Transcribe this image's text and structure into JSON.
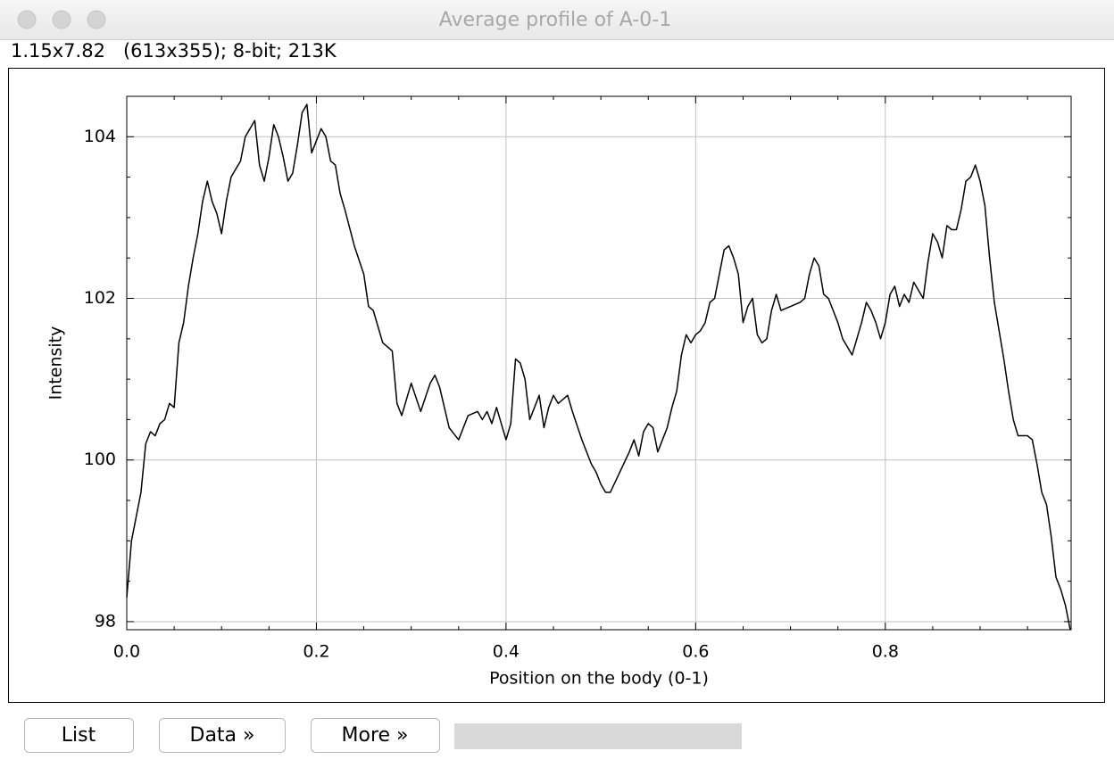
{
  "window": {
    "title": "Average profile of A-0-1",
    "info": "1.15x7.82   (613x355); 8-bit; 213K"
  },
  "chart_data": {
    "type": "line",
    "xlabel": "Position on the body (0-1)",
    "ylabel": "Intensity",
    "x": [
      0,
      0.005,
      0.01,
      0.015,
      0.02,
      0.025,
      0.03,
      0.035,
      0.04,
      0.045,
      0.05,
      0.055,
      0.06,
      0.065,
      0.07,
      0.075,
      0.08,
      0.085,
      0.09,
      0.095,
      0.1,
      0.105,
      0.11,
      0.115,
      0.12,
      0.125,
      0.13,
      0.135,
      0.14,
      0.145,
      0.15,
      0.155,
      0.16,
      0.165,
      0.17,
      0.175,
      0.18,
      0.185,
      0.19,
      0.195,
      0.2,
      0.205,
      0.21,
      0.215,
      0.22,
      0.225,
      0.23,
      0.24,
      0.25,
      0.255,
      0.26,
      0.27,
      0.28,
      0.285,
      0.29,
      0.3,
      0.31,
      0.32,
      0.325,
      0.33,
      0.34,
      0.35,
      0.36,
      0.37,
      0.375,
      0.38,
      0.385,
      0.39,
      0.4,
      0.405,
      0.41,
      0.415,
      0.42,
      0.425,
      0.43,
      0.435,
      0.44,
      0.445,
      0.45,
      0.455,
      0.46,
      0.465,
      0.47,
      0.48,
      0.49,
      0.495,
      0.5,
      0.505,
      0.51,
      0.52,
      0.53,
      0.535,
      0.54,
      0.545,
      0.55,
      0.555,
      0.56,
      0.565,
      0.57,
      0.575,
      0.58,
      0.585,
      0.59,
      0.595,
      0.6,
      0.605,
      0.61,
      0.615,
      0.62,
      0.625,
      0.63,
      0.635,
      0.64,
      0.645,
      0.65,
      0.655,
      0.66,
      0.665,
      0.67,
      0.675,
      0.68,
      0.685,
      0.69,
      0.7,
      0.71,
      0.715,
      0.72,
      0.725,
      0.73,
      0.735,
      0.74,
      0.75,
      0.755,
      0.76,
      0.765,
      0.77,
      0.775,
      0.78,
      0.785,
      0.79,
      0.795,
      0.8,
      0.805,
      0.81,
      0.815,
      0.82,
      0.825,
      0.83,
      0.835,
      0.84,
      0.845,
      0.85,
      0.855,
      0.86,
      0.865,
      0.87,
      0.875,
      0.88,
      0.885,
      0.89,
      0.895,
      0.9,
      0.905,
      0.91,
      0.915,
      0.92,
      0.925,
      0.93,
      0.935,
      0.94,
      0.945,
      0.95,
      0.955,
      0.96,
      0.965,
      0.97,
      0.975,
      0.98,
      0.985,
      0.99,
      0.995
    ],
    "values": [
      98.3,
      99.0,
      99.3,
      99.6,
      100.2,
      100.35,
      100.3,
      100.45,
      100.5,
      100.7,
      100.65,
      101.45,
      101.7,
      102.15,
      102.5,
      102.8,
      103.2,
      103.45,
      103.2,
      103.05,
      102.8,
      103.2,
      103.5,
      103.6,
      103.7,
      104.0,
      104.1,
      104.2,
      103.65,
      103.45,
      103.75,
      104.15,
      104.0,
      103.75,
      103.45,
      103.55,
      103.9,
      104.3,
      104.4,
      103.8,
      103.95,
      104.1,
      104.0,
      103.7,
      103.65,
      103.3,
      103.1,
      102.65,
      102.3,
      101.9,
      101.85,
      101.45,
      101.35,
      100.7,
      100.55,
      100.95,
      100.6,
      100.95,
      101.05,
      100.9,
      100.4,
      100.25,
      100.55,
      100.6,
      100.5,
      100.6,
      100.45,
      100.65,
      100.25,
      100.45,
      101.25,
      101.2,
      101.0,
      100.5,
      100.65,
      100.8,
      100.4,
      100.65,
      100.8,
      100.7,
      100.75,
      100.8,
      100.6,
      100.25,
      99.95,
      99.85,
      99.7,
      99.6,
      99.6,
      99.85,
      100.1,
      100.25,
      100.05,
      100.35,
      100.45,
      100.4,
      100.1,
      100.25,
      100.4,
      100.65,
      100.85,
      101.3,
      101.55,
      101.45,
      101.55,
      101.6,
      101.7,
      101.95,
      102.0,
      102.3,
      102.6,
      102.65,
      102.5,
      102.3,
      101.7,
      101.9,
      102.0,
      101.55,
      101.45,
      101.5,
      101.85,
      102.05,
      101.85,
      101.9,
      101.95,
      102.0,
      102.3,
      102.5,
      102.4,
      102.05,
      102.0,
      101.7,
      101.5,
      101.4,
      101.3,
      101.5,
      101.7,
      101.95,
      101.85,
      101.7,
      101.5,
      101.7,
      102.05,
      102.15,
      101.9,
      102.05,
      101.95,
      102.2,
      102.1,
      102.0,
      102.45,
      102.8,
      102.7,
      102.5,
      102.9,
      102.85,
      102.85,
      103.1,
      103.45,
      103.5,
      103.65,
      103.45,
      103.15,
      102.5,
      101.95,
      101.6,
      101.25,
      100.85,
      100.5,
      100.3,
      100.3,
      100.3,
      100.25,
      99.95,
      99.6,
      99.45,
      99.05,
      98.55,
      98.4,
      98.2,
      97.9
    ],
    "color": "#000000",
    "xlim": [
      0,
      0.996
    ],
    "ylim": [
      97.9,
      104.5
    ],
    "xticks": [
      {
        "value": 0,
        "label": "0.0"
      },
      0.2,
      0.4,
      0.6,
      0.8
    ],
    "yticks": [
      98,
      100,
      102,
      104
    ],
    "x_minor_ticks": [
      0.05,
      0.1,
      0.15,
      0.25,
      0.3,
      0.35,
      0.45,
      0.5,
      0.55,
      0.65,
      0.7,
      0.75,
      0.85,
      0.9,
      0.95
    ],
    "y_minor_ticks": [
      98.5,
      99,
      99.5,
      100.5,
      101,
      101.5,
      102.5,
      103,
      103.5
    ],
    "grid": true
  },
  "buttons": [
    "List",
    "Data »",
    "More »"
  ]
}
